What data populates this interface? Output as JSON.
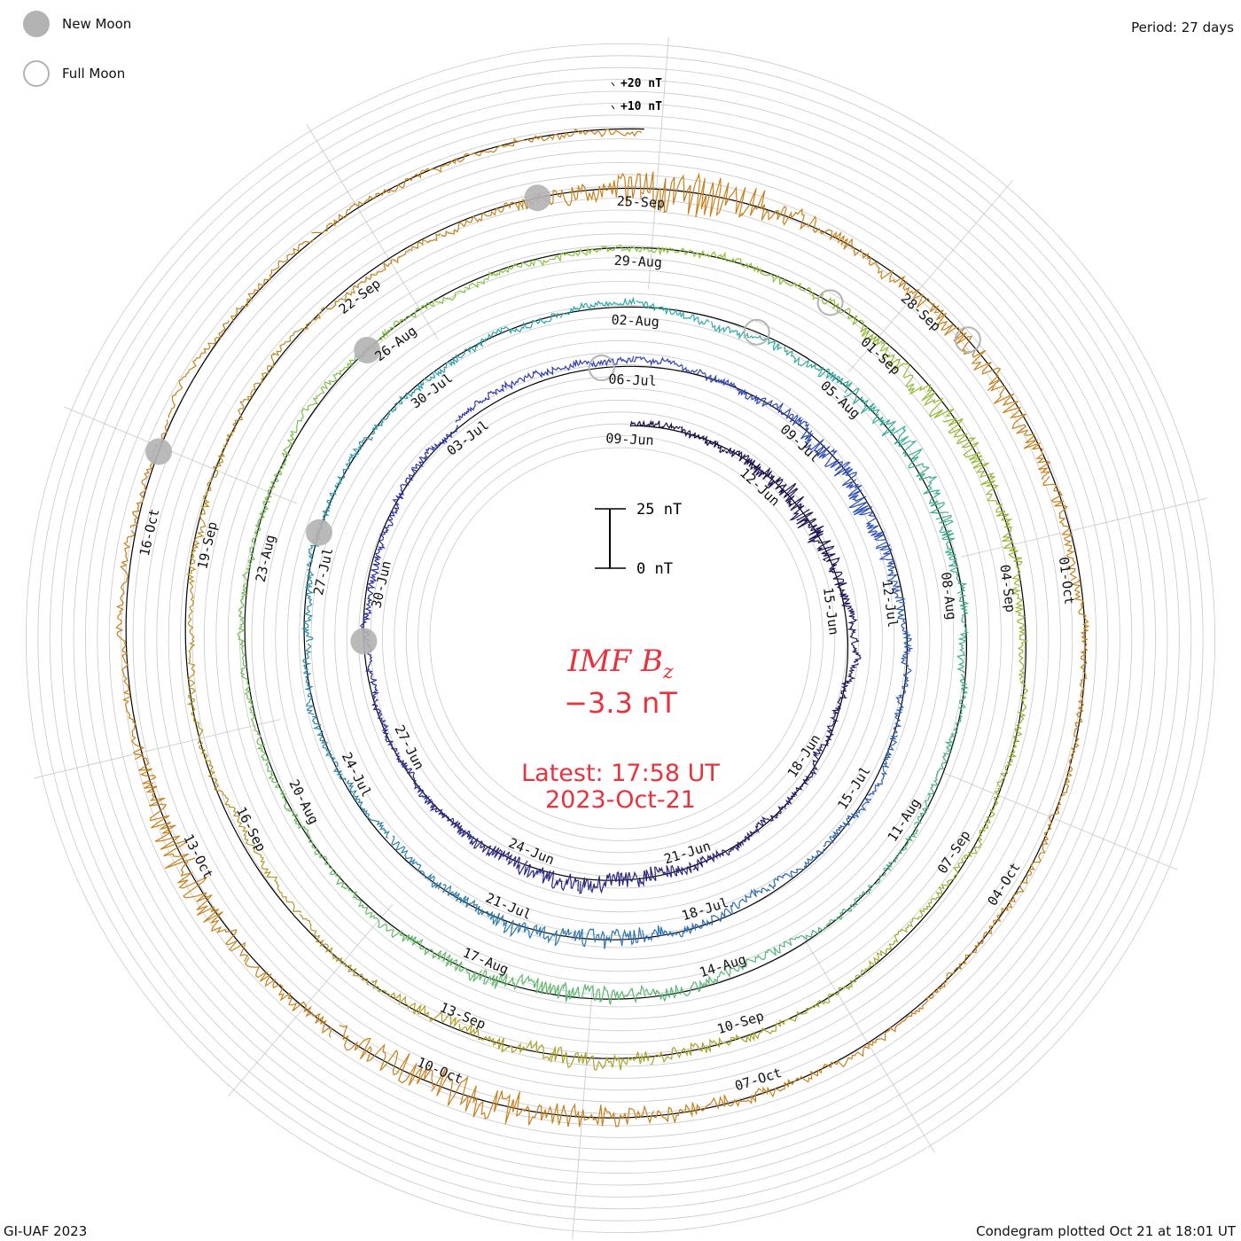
{
  "header": {
    "period": "Period: 27 days",
    "credit": "GI-UAF 2023",
    "plotted": "Condegram plotted Oct 21 at 18:01 UT"
  },
  "legend": {
    "new_moon": "New Moon",
    "full_moon": "Full Moon",
    "new_moon_color": "#b3b3b3",
    "full_moon_color": "#b3b3b3"
  },
  "center": {
    "title_main": "IMF B",
    "title_sub": "z",
    "value": "−3.3 nT",
    "latest_line1": "Latest: 17:58 UT",
    "latest_line2": "2023-Oct-21",
    "color": "#e8323e"
  },
  "chart_data": {
    "type": "line",
    "title": "IMF Bz",
    "projection": "spiral condegram, 27-day period",
    "units": "nT",
    "period_days": 27,
    "scale_bar": {
      "low_label": "0 nT",
      "high_label": "25 nT",
      "low": 0,
      "high": 25
    },
    "ring_labels": [
      "+10 nT",
      "+20 nT"
    ],
    "grid": true,
    "radial_spokes": 10,
    "turns": [
      {
        "name": "Jun 09 - Jul 06",
        "color": "#1e0b45",
        "dates": [
          "09-Jun",
          "12-Jun",
          "15-Jun",
          "18-Jun",
          "21-Jun",
          "24-Jun",
          "27-Jun",
          "30-Jun",
          "03-Jul"
        ]
      },
      {
        "name": "Jul 06 - Aug 02",
        "color": "#3140b8",
        "dates": [
          "06-Jul",
          "09-Jul",
          "12-Jul",
          "15-Jul",
          "18-Jul",
          "21-Jul",
          "24-Jul",
          "27-Jul",
          "30-Jul"
        ]
      },
      {
        "name": "Aug 02 - Aug 29",
        "color": "#2aaaa6",
        "dates": [
          "02-Aug",
          "05-Aug",
          "08-Aug",
          "11-Aug",
          "14-Aug",
          "17-Aug",
          "20-Aug",
          "23-Aug",
          "26-Aug"
        ]
      },
      {
        "name": "Aug 29 - Sep 25",
        "color": "#8cc43a",
        "dates": [
          "29-Aug",
          "01-Sep",
          "04-Sep",
          "07-Sep",
          "10-Sep",
          "13-Sep",
          "16-Sep",
          "19-Sep",
          "22-Sep"
        ]
      },
      {
        "name": "Sep 25 - Oct 21",
        "color": "#c8801a",
        "dates": [
          "25-Sep",
          "28-Sep",
          "01-Oct",
          "04-Oct",
          "07-Oct",
          "10-Oct",
          "13-Oct",
          "16-Oct"
        ]
      }
    ],
    "latest_value": -3.3,
    "series_note": "one-minute IMF Bz, roughly -15 to +15 nT, most activity near Sep 25 and Oct 13",
    "moon_phases": {
      "new_moon_days": [
        20,
        48.5,
        77.7,
        107,
        129.7
      ],
      "full_moon_days": [
        26.5,
        55.6,
        83.2,
        111.5
      ]
    }
  }
}
